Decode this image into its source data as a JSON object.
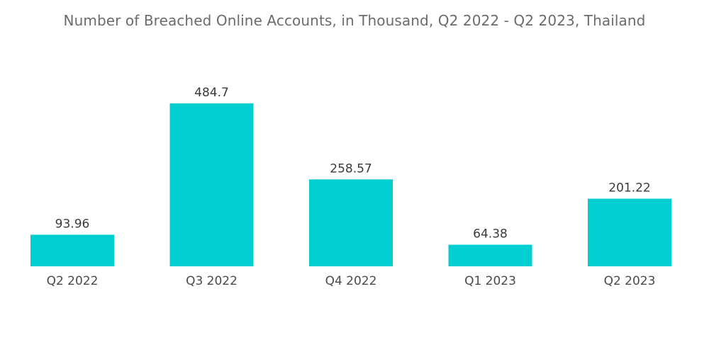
{
  "chart_data": {
    "type": "bar",
    "title": "Number of Breached Online Accounts, in Thousand, Q2 2022 - Q2 2023, Thailand",
    "categories": [
      "Q2 2022",
      "Q3 2022",
      "Q4 2022",
      "Q1 2023",
      "Q2 2023"
    ],
    "values": [
      93.96,
      484.7,
      258.57,
      64.38,
      201.22
    ],
    "value_labels": [
      "93.96",
      "484.7",
      "258.57",
      "64.38",
      "201.22"
    ],
    "xlabel": "",
    "ylabel": "",
    "ylim": [
      0,
      500
    ],
    "grid": false,
    "legend": "none",
    "bar_color": "#00CED1"
  }
}
